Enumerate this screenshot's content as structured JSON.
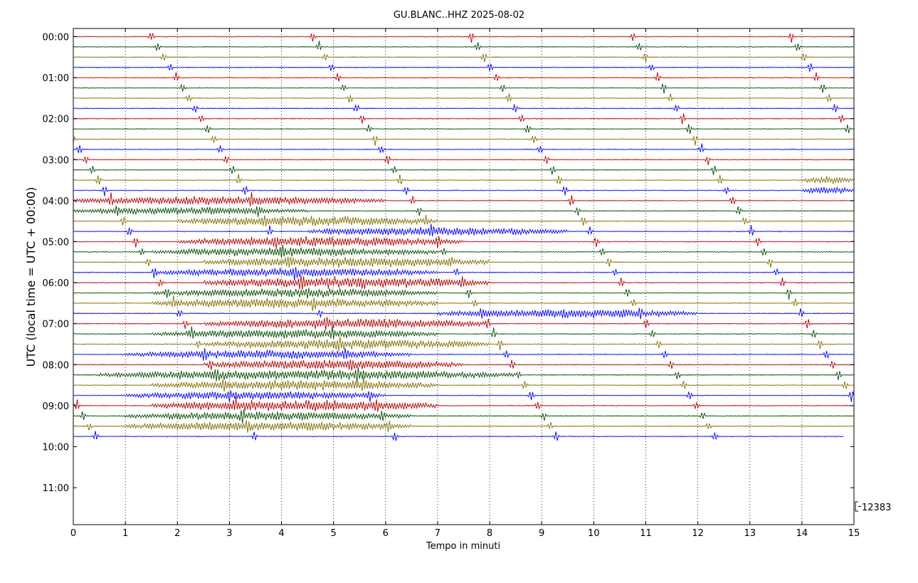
{
  "chart_data": {
    "type": "helicorder",
    "title": "GU.BLANC..HHZ 2025-08-02",
    "xlabel": "Tempo in minuti",
    "ylabel": "UTC (local time = UTC + 00:00)",
    "xlim": [
      0,
      15
    ],
    "x_ticks": [
      0,
      1,
      2,
      3,
      4,
      5,
      6,
      7,
      8,
      9,
      10,
      11,
      12,
      13,
      14,
      15
    ],
    "y_tick_labels": [
      "00:00",
      "01:00",
      "02:00",
      "03:00",
      "04:00",
      "05:00",
      "06:00",
      "07:00",
      "08:00",
      "09:00",
      "10:00",
      "11:00"
    ],
    "minutes_per_line": 15,
    "hours_displayed": 12,
    "trace_count": 40,
    "last_trace_end_minute": 14.8,
    "trace_colors": [
      "#b30000",
      "#004d00",
      "#7f7000",
      "#0000ff"
    ],
    "vertical_grid": "dotted",
    "scale_label": "12383",
    "recurring_event_minutes_at_00_00": [
      1.5,
      4.6,
      7.65,
      10.75,
      13.8
    ],
    "recurring_event_drift_minutes_per_line": 0.12,
    "activity_windows": [
      {
        "trace": 16,
        "start": 0.0,
        "end": 6.0,
        "level": 0.6
      },
      {
        "trace": 17,
        "start": 0.0,
        "end": 4.5,
        "level": 0.5
      },
      {
        "trace": 18,
        "start": 2.0,
        "end": 7.0,
        "level": 0.7
      },
      {
        "trace": 19,
        "start": 4.5,
        "end": 9.5,
        "level": 0.6
      },
      {
        "trace": 20,
        "start": 2.0,
        "end": 7.5,
        "level": 0.7
      },
      {
        "trace": 21,
        "start": 1.5,
        "end": 7.0,
        "level": 0.6
      },
      {
        "trace": 22,
        "start": 2.5,
        "end": 8.0,
        "level": 0.7
      },
      {
        "trace": 23,
        "start": 1.5,
        "end": 7.0,
        "level": 0.6
      },
      {
        "trace": 24,
        "start": 2.5,
        "end": 8.0,
        "level": 0.8
      },
      {
        "trace": 25,
        "start": 1.5,
        "end": 7.0,
        "level": 0.6
      },
      {
        "trace": 26,
        "start": 1.5,
        "end": 7.0,
        "level": 0.7
      },
      {
        "trace": 27,
        "start": 7.0,
        "end": 12.0,
        "level": 0.6
      },
      {
        "trace": 28,
        "start": 2.5,
        "end": 8.0,
        "level": 0.7
      },
      {
        "trace": 29,
        "start": 1.5,
        "end": 7.0,
        "level": 0.6
      },
      {
        "trace": 30,
        "start": 2.5,
        "end": 8.0,
        "level": 0.7
      },
      {
        "trace": 31,
        "start": 1.0,
        "end": 6.5,
        "level": 0.6
      },
      {
        "trace": 32,
        "start": 2.5,
        "end": 7.5,
        "level": 0.7
      },
      {
        "trace": 33,
        "start": 0.5,
        "end": 8.5,
        "level": 0.7
      },
      {
        "trace": 34,
        "start": 1.5,
        "end": 7.0,
        "level": 0.7
      },
      {
        "trace": 35,
        "start": 1.0,
        "end": 6.0,
        "level": 0.6
      },
      {
        "trace": 36,
        "start": 1.5,
        "end": 7.0,
        "level": 0.8
      },
      {
        "trace": 37,
        "start": 1.0,
        "end": 6.5,
        "level": 0.6
      },
      {
        "trace": 38,
        "start": 1.0,
        "end": 6.5,
        "level": 0.7
      },
      {
        "trace": 15,
        "start": 14.0,
        "end": 15.0,
        "level": 0.5
      },
      {
        "trace": 14,
        "start": 14.0,
        "end": 15.0,
        "level": 0.5
      }
    ]
  }
}
